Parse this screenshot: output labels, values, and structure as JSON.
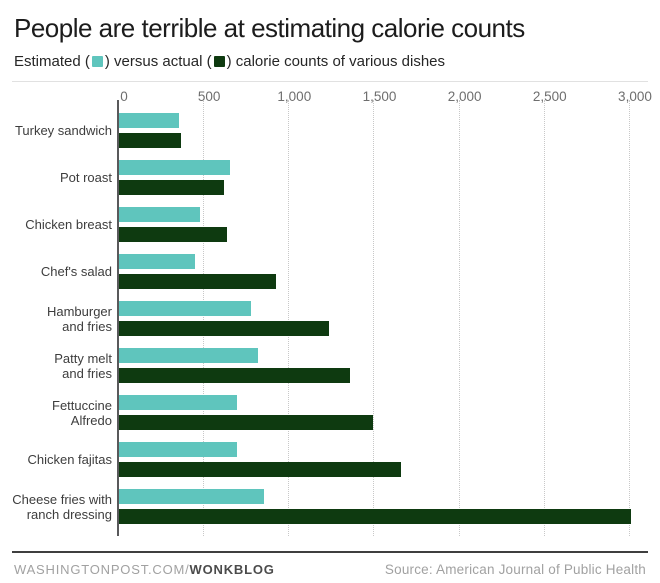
{
  "header": {
    "title": "People are terrible at estimating calorie counts"
  },
  "legend": {
    "prefix": "Estimated (",
    "middle": ") versus actual (",
    "suffix": ") calorie counts of various dishes",
    "estimated_color": "#5fc5bd",
    "actual_color": "#0e3a10"
  },
  "chart_data": {
    "type": "bar",
    "orientation": "horizontal",
    "title": "People are terrible at estimating calorie counts",
    "subtitle": "Estimated versus actual calorie counts of various dishes",
    "categories": [
      "Turkey sandwich",
      "Pot roast",
      "Chicken breast",
      "Chef's salad",
      "Hamburger and fries",
      "Patty melt and fries",
      "Fettuccine Alfredo",
      "Chicken fajitas",
      "Cheese fries with ranch dressing"
    ],
    "category_lines": [
      [
        "Turkey sandwich"
      ],
      [
        "Pot roast"
      ],
      [
        "Chicken breast"
      ],
      [
        "Chef's salad"
      ],
      [
        "Hamburger",
        "and fries"
      ],
      [
        "Patty melt",
        "and fries"
      ],
      [
        "Fettuccine Alfredo"
      ],
      [
        "Chicken fajitas"
      ],
      [
        "Cheese fries with",
        "ranch dressing"
      ]
    ],
    "series": [
      {
        "name": "Estimated",
        "color": "#5fc5bd",
        "values": [
          360,
          660,
          480,
          450,
          780,
          820,
          700,
          700,
          860
        ]
      },
      {
        "name": "Actual",
        "color": "#0e3a10",
        "values": [
          370,
          620,
          640,
          930,
          1240,
          1360,
          1500,
          1660,
          3010
        ]
      }
    ],
    "xlim": [
      0,
      3100
    ],
    "xticks": [
      0,
      500,
      1000,
      1500,
      2000,
      2500,
      3000
    ],
    "xtick_labels": [
      "0",
      "500",
      "1,000",
      "1,500",
      "2,000",
      "2,500",
      "3,000"
    ],
    "grid": "dotted-vertical",
    "legend_position": "subtitle-inline"
  },
  "footer": {
    "site": "WASHINGTONPOST.COM/",
    "blog": "WONKBLOG",
    "source": "Source: American Journal of Public Health"
  }
}
